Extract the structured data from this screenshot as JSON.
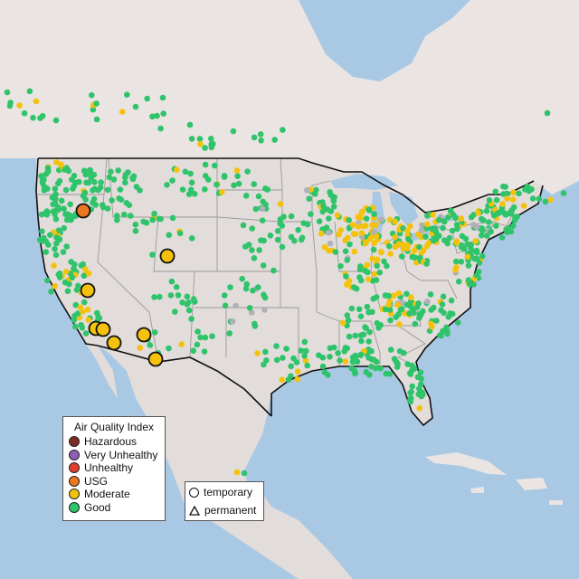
{
  "legend": {
    "title": "Air Quality Index",
    "categories": [
      {
        "label": "Hazardous",
        "color": "#7e2b23"
      },
      {
        "label": "Very Unhealthy",
        "color": "#8f5fb8"
      },
      {
        "label": "Unhealthy",
        "color": "#e23c2c"
      },
      {
        "label": "USG",
        "color": "#e8771e"
      },
      {
        "label": "Moderate",
        "color": "#f4c20d"
      },
      {
        "label": "Good",
        "color": "#2fc46b"
      }
    ]
  },
  "monitor_types": {
    "temporary": "temporary",
    "permanent": "permanent"
  },
  "colors": {
    "ocean": "#a9c8e3",
    "land": "#eae4e2",
    "usa_land": "#e2dcda",
    "state_border": "#9a9a9a",
    "country_border": "#111111",
    "great_lakes": "#a9c8e3",
    "good": "#2fc46b",
    "moderate": "#f4c20d",
    "usg": "#e8771e",
    "gray_site": "#b0b0b8"
  },
  "large_monitors": [
    {
      "category": "USG",
      "name": "central-oregon"
    },
    {
      "category": "Moderate",
      "name": "northern-utah"
    },
    {
      "category": "Moderate",
      "name": "central-california"
    },
    {
      "category": "Moderate",
      "name": "los-angeles-1"
    },
    {
      "category": "Moderate",
      "name": "los-angeles-2"
    },
    {
      "category": "Moderate",
      "name": "riverside"
    },
    {
      "category": "Moderate",
      "name": "central-arizona"
    },
    {
      "category": "Moderate",
      "name": "southern-arizona"
    }
  ]
}
